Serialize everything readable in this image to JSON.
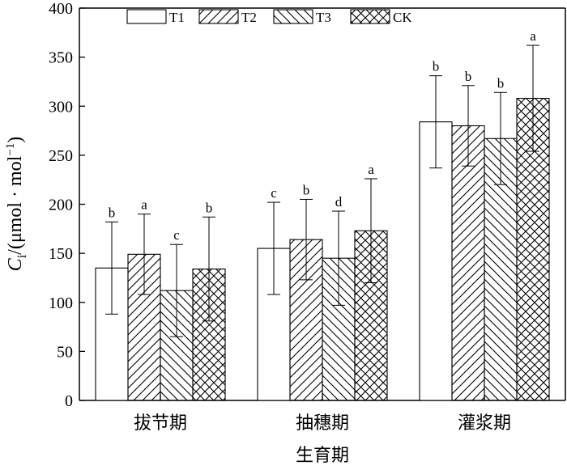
{
  "chart_data": {
    "type": "bar",
    "xlabel": "生育期",
    "ylabel": {
      "main": "C",
      "subscript": "i",
      "unit": "/(μmol · mol",
      "superscript": "−1",
      "close": ")"
    },
    "ylim": [
      0,
      400
    ],
    "yticks": [
      0,
      50,
      100,
      150,
      200,
      250,
      300,
      350,
      400
    ],
    "categories": [
      "拔节期",
      "抽穗期",
      "灌浆期"
    ],
    "legend_position": "top",
    "grid": false,
    "series": [
      {
        "name": "T1",
        "pattern": "none",
        "values": [
          135,
          155,
          284
        ],
        "errors": [
          47,
          47,
          47
        ],
        "letters": [
          "b",
          "c",
          "b"
        ]
      },
      {
        "name": "T2",
        "pattern": "forward-diagonal",
        "values": [
          149,
          164,
          280
        ],
        "errors": [
          41,
          41,
          41
        ],
        "letters": [
          "a",
          "b",
          "b"
        ]
      },
      {
        "name": "T3",
        "pattern": "backward-diagonal",
        "values": [
          112,
          145,
          267
        ],
        "errors": [
          47,
          48,
          47
        ],
        "letters": [
          "c",
          "d",
          "b"
        ]
      },
      {
        "name": "CK",
        "pattern": "crosshatch",
        "values": [
          134,
          173,
          308
        ],
        "errors": [
          53,
          53,
          54
        ],
        "letters": [
          "b",
          "a",
          "a"
        ]
      }
    ]
  }
}
